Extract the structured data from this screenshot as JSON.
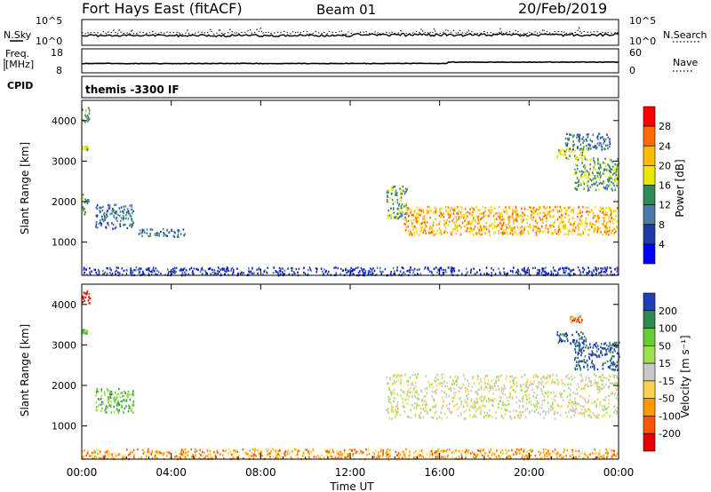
{
  "header": {
    "title": "Fort Hays East (fitACF)",
    "beam": "Beam 01",
    "date": "20/Feb/2019"
  },
  "top_panels": {
    "nsky_label": "N.Sky",
    "nsearch_label": "N.Search",
    "noise_ticks": [
      "10^5",
      "10^0"
    ],
    "freq_label": "Freq.",
    "freq_unit": "[MHz]",
    "freq_ticks": [
      "18",
      "8"
    ],
    "nave_label": "Nave",
    "nave_ticks": [
      "60",
      "0"
    ],
    "cpid_label": "CPID",
    "cpid_text": "themis -3300 IF"
  },
  "chart_data": [
    {
      "type": "heatmap",
      "panel": "power",
      "ylabel": "Slant Range [km]",
      "xlabel": "",
      "x_ticks": [
        "00:00",
        "04:00",
        "08:00",
        "12:00",
        "16:00",
        "20:00",
        "00:00"
      ],
      "y_ticks": [
        1000,
        2000,
        3000,
        4000
      ],
      "ylim": [
        180,
        4500
      ],
      "xlim_hours": [
        0,
        24
      ],
      "colorbar": {
        "label": "Power [dB]",
        "ticks": [
          "28",
          "24",
          "20",
          "16",
          "12",
          "8",
          "4"
        ],
        "colors": [
          "#ff0000",
          "#ff6a00",
          "#ffbb00",
          "#e8e800",
          "#2e8b57",
          "#4b7aa8",
          "#1f3aa8",
          "#0000ff"
        ]
      },
      "echo_regions": [
        {
          "t0": 0.0,
          "t1": 0.35,
          "r0": 3950,
          "r1": 4350,
          "level": 4
        },
        {
          "t0": 0.0,
          "t1": 0.25,
          "r0": 3300,
          "r1": 3400,
          "level": 3
        },
        {
          "t0": 0.0,
          "t1": 0.3,
          "r0": 1700,
          "r1": 2200,
          "level": 4
        },
        {
          "t0": 0.6,
          "t1": 2.3,
          "r0": 1350,
          "r1": 1950,
          "level": 5
        },
        {
          "t0": 2.5,
          "t1": 4.6,
          "r0": 1150,
          "r1": 1350,
          "level": 5
        },
        {
          "t0": 0.0,
          "t1": 24.0,
          "r0": 200,
          "r1": 400,
          "level": 6
        },
        {
          "t0": 13.6,
          "t1": 14.6,
          "r0": 1600,
          "r1": 2400,
          "level": 4
        },
        {
          "t0": 14.4,
          "t1": 24.0,
          "r0": 1200,
          "r1": 1900,
          "level": 2
        },
        {
          "t0": 21.2,
          "t1": 22.6,
          "r0": 3050,
          "r1": 3350,
          "level": 3
        },
        {
          "t0": 22.0,
          "t1": 24.0,
          "r0": 2300,
          "r1": 3100,
          "level": 4
        },
        {
          "t0": 21.6,
          "t1": 23.6,
          "r0": 3300,
          "r1": 3700,
          "level": 5
        }
      ]
    },
    {
      "type": "heatmap",
      "panel": "velocity",
      "ylabel": "Slant Range [km]",
      "xlabel": "Time UT",
      "x_ticks": [
        "00:00",
        "04:00",
        "08:00",
        "12:00",
        "16:00",
        "20:00",
        "00:00"
      ],
      "y_ticks": [
        1000,
        2000,
        3000,
        4000
      ],
      "ylim": [
        180,
        4500
      ],
      "xlim_hours": [
        0,
        24
      ],
      "colorbar": {
        "label": "Velocity [m s⁻¹]",
        "ticks": [
          "200",
          "100",
          "50",
          "15",
          "-15",
          "-50",
          "-100",
          "-200"
        ],
        "colors": [
          "#1e3fb5",
          "#2d8a50",
          "#66cc33",
          "#99e04d",
          "#c8c8c8",
          "#ffd24d",
          "#ff9900",
          "#ff5500",
          "#e60000"
        ]
      },
      "echo_regions": [
        {
          "t0": 0.0,
          "t1": 0.35,
          "r0": 4050,
          "r1": 4350,
          "level": 8
        },
        {
          "t0": 0.0,
          "t1": 0.25,
          "r0": 3300,
          "r1": 3400,
          "level": 2
        },
        {
          "t0": 0.6,
          "t1": 2.3,
          "r0": 1350,
          "r1": 1950,
          "level": 2
        },
        {
          "t0": 0.0,
          "t1": 24.0,
          "r0": 200,
          "r1": 450,
          "level": 6
        },
        {
          "t0": 13.6,
          "t1": 24.0,
          "r0": 1200,
          "r1": 2300,
          "level": 4
        },
        {
          "t0": 21.2,
          "t1": 22.6,
          "r0": 3050,
          "r1": 3350,
          "level": 0
        },
        {
          "t0": 22.0,
          "t1": 24.0,
          "r0": 2400,
          "r1": 3100,
          "level": 0
        },
        {
          "t0": 21.8,
          "t1": 22.4,
          "r0": 3550,
          "r1": 3750,
          "level": 7
        }
      ]
    }
  ]
}
